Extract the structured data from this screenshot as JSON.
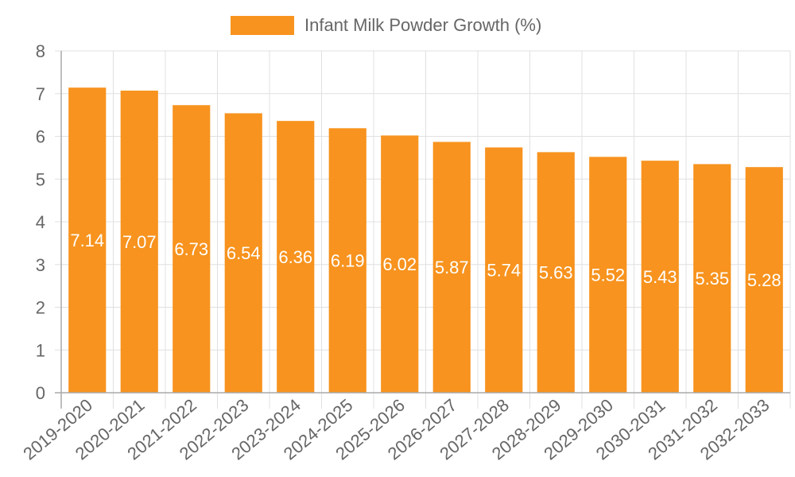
{
  "legend": {
    "label": "Infant Milk Powder Growth (%)",
    "color": "#f7931e"
  },
  "colors": {
    "bar": "#f7931e",
    "grid": "#e0e0e0",
    "axis": "#aaaaaa",
    "tick_text": "#666666",
    "bar_label": "#ffffff"
  },
  "chart_data": {
    "type": "bar",
    "title": "",
    "xlabel": "",
    "ylabel": "",
    "ylim": [
      0,
      8
    ],
    "yticks": [
      0,
      1,
      2,
      3,
      4,
      5,
      6,
      7,
      8
    ],
    "grid": true,
    "legend_position": "top",
    "categories": [
      "2019-2020",
      "2020-2021",
      "2021-2022",
      "2022-2023",
      "2023-2024",
      "2024-2025",
      "2025-2026",
      "2026-2027",
      "2027-2028",
      "2028-2029",
      "2029-2030",
      "2030-2031",
      "2031-2032",
      "2032-2033"
    ],
    "series": [
      {
        "name": "Infant Milk Powder Growth (%)",
        "values": [
          7.14,
          7.07,
          6.73,
          6.54,
          6.36,
          6.19,
          6.02,
          5.87,
          5.74,
          5.63,
          5.52,
          5.43,
          5.35,
          5.28
        ]
      }
    ],
    "data_labels": [
      "7.14",
      "7.07",
      "6.73",
      "6.54",
      "6.36",
      "6.19",
      "6.02",
      "5.87",
      "5.74",
      "5.63",
      "5.52",
      "5.43",
      "5.35",
      "5.28"
    ]
  }
}
